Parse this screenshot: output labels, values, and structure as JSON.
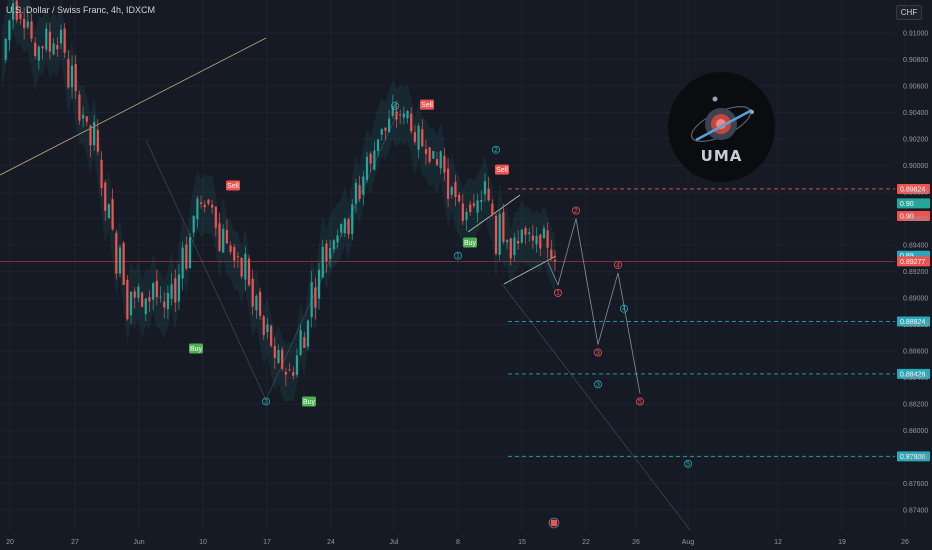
{
  "header": {
    "symbol_title": "U.S. Dollar / Swiss Franc, 4h, IDXCM",
    "currency_button": "CHF"
  },
  "logo": {
    "text": "UMA"
  },
  "colors": {
    "background": "#161a25",
    "bull": "#26a69a",
    "bear": "#ef5350",
    "grid": "#1f2331",
    "wave_red": "#ef5350",
    "wave_teal": "#2aa7b8"
  },
  "chart_data": {
    "type": "candlestick",
    "title": "U.S. Dollar / Swiss Franc, 4h, IDXCM",
    "ylim": [
      0.8725,
      0.9125
    ],
    "y_ticks": [
      "0.91000",
      "0.90800",
      "0.90600",
      "0.90400",
      "0.90200",
      "0.90000",
      "0.89800",
      "0.89600",
      "0.89400",
      "0.89200",
      "0.89000",
      "0.88800",
      "0.88600",
      "0.88400",
      "0.88200",
      "0.88000",
      "0.87800",
      "0.87600",
      "0.87400"
    ],
    "x_ticks": [
      "20",
      "27",
      "Jun",
      "10",
      "17",
      "24",
      "Jul",
      "8",
      "15",
      "22",
      "26",
      "Aug",
      "12",
      "19",
      "26"
    ],
    "price_path": [
      [
        0.908,
        0.91
      ],
      [
        0.9108,
        0.9125
      ],
      [
        0.9118,
        0.9105
      ],
      [
        0.9098,
        0.9072
      ],
      [
        0.9078,
        0.911
      ],
      [
        0.9112,
        0.9078
      ],
      [
        0.9079,
        0.9045
      ],
      [
        0.904,
        0.9028
      ],
      [
        0.903,
        0.8998
      ],
      [
        0.8995,
        0.896
      ],
      [
        0.896,
        0.8915
      ],
      [
        0.8918,
        0.8878
      ],
      [
        0.888,
        0.8918
      ],
      [
        0.8918,
        0.889
      ],
      [
        0.889,
        0.89
      ],
      [
        0.8895,
        0.893
      ],
      [
        0.8925,
        0.896
      ],
      [
        0.8962,
        0.8975
      ],
      [
        0.8975,
        0.897
      ],
      [
        0.897,
        0.8925
      ],
      [
        0.8925,
        0.894
      ],
      [
        0.894,
        0.8905
      ],
      [
        0.8905,
        0.888
      ],
      [
        0.888,
        0.886
      ],
      [
        0.8858,
        0.8838
      ],
      [
        0.8838,
        0.8845
      ],
      [
        0.8845,
        0.888
      ],
      [
        0.8882,
        0.892
      ],
      [
        0.892,
        0.895
      ],
      [
        0.895,
        0.8945
      ],
      [
        0.8945,
        0.8975
      ],
      [
        0.8975,
        0.9
      ],
      [
        0.9,
        0.902
      ],
      [
        0.902,
        0.903
      ],
      [
        0.903,
        0.9045
      ],
      [
        0.9045,
        0.9035
      ],
      [
        0.9035,
        0.9005
      ],
      [
        0.9005,
        0.9015
      ],
      [
        0.9015,
        0.899
      ],
      [
        0.899,
        0.896
      ],
      [
        0.896,
        0.8975
      ],
      [
        0.8975,
        0.8965
      ],
      [
        0.8965,
        0.899
      ],
      [
        0.899,
        0.892
      ],
      [
        0.892,
        0.8955
      ],
      [
        0.8955,
        0.894
      ],
      [
        0.894,
        0.895
      ],
      [
        0.895,
        0.8935
      ],
      [
        0.8935,
        0.8925
      ]
    ],
    "x_dates": [
      "May 20",
      "May 21",
      "May 22",
      "May 23",
      "May 24",
      "May 27",
      "May 28",
      "May 29",
      "May 30",
      "May 31",
      "Jun 3",
      "Jun 4",
      "Jun 5",
      "Jun 6",
      "Jun 7",
      "Jun 10",
      "Jun 11",
      "Jun 12",
      "Jun 13",
      "Jun 14",
      "Jun 17",
      "Jun 18",
      "Jun 19",
      "Jun 20",
      "Jun 21",
      "Jun 24",
      "Jun 25",
      "Jun 26",
      "Jun 27",
      "Jun 28",
      "Jul 1",
      "Jul 2",
      "Jul 3",
      "Jul 4",
      "Jul 5",
      "Jul 8",
      "Jul 9",
      "Jul 10",
      "Jul 11",
      "Jul 12",
      "Jul 15",
      "Jul 15",
      "Jul 16",
      "Jul 16",
      "Jul 17",
      "Jul 17",
      "Jul 18",
      "Jul 18",
      "Jul 19"
    ],
    "price_labels": [
      {
        "label": "0.89824",
        "y": 0.89824,
        "color": "#ef5350",
        "dashed": true
      },
      {
        "label": "0.90",
        "y": 0.89715,
        "color": "#26a69a",
        "dashed": false
      },
      {
        "label": "0.90",
        "y": 0.8962,
        "color": "#ef5350",
        "dashed": false
      },
      {
        "label": "0.89",
        "y": 0.8932,
        "color": "#2aa7b8",
        "dashed": false
      },
      {
        "label": "0.89277",
        "y": 0.89277,
        "color": "#ef5350",
        "dashed": false
      },
      {
        "label": "0.88824",
        "y": 0.88824,
        "color": "#2aa7b8",
        "dashed": true
      },
      {
        "label": "0.88428",
        "y": 0.88428,
        "color": "#2aa7b8",
        "dashed": true
      },
      {
        "label": "0.87806",
        "y": 0.87806,
        "color": "#2aa7b8",
        "dashed": true
      }
    ],
    "signals": [
      {
        "label": "Sell",
        "type": "sell",
        "date": "May 29",
        "y": 0.8985
      },
      {
        "label": "Buy",
        "type": "buy",
        "date": "Jun 7",
        "y": 0.8862
      },
      {
        "label": "Buy",
        "type": "buy",
        "date": "Jun 21",
        "y": 0.8822
      },
      {
        "label": "Sell",
        "type": "sell",
        "date": "Jul 3",
        "y": 0.9046
      },
      {
        "label": "Buy",
        "type": "buy",
        "date": "Jul 9",
        "y": 0.8942
      },
      {
        "label": "Sell",
        "type": "sell",
        "date": "Jul 12",
        "y": 0.8997
      }
    ],
    "wave_labels_history": [
      {
        "label": "3",
        "y": 0.8822,
        "date": "Jun 14"
      },
      {
        "label": "4",
        "y": 0.9045,
        "date": "Jul 2"
      },
      {
        "label": "1",
        "y": 0.8932,
        "date": "Jul 8"
      },
      {
        "label": "2",
        "y": 0.9012,
        "date": "Jul 10"
      }
    ],
    "projection_red": [
      {
        "label": "1",
        "y": 0.891
      },
      {
        "label": "2",
        "y": 0.896
      },
      {
        "label": "3",
        "y": 0.8865
      },
      {
        "label": "4",
        "y": 0.8919
      },
      {
        "label": "5",
        "y": 0.8828
      }
    ],
    "projection_teal": [
      {
        "label": "3",
        "y": 0.8835
      },
      {
        "label": "4",
        "y": 0.8892
      },
      {
        "label": "5",
        "y": 0.8775
      }
    ]
  }
}
